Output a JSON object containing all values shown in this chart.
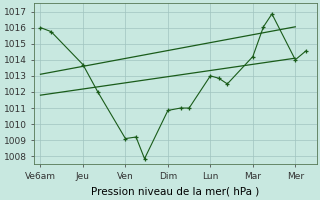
{
  "xlabel": "Pression niveau de la mer( hPa )",
  "xtick_labels": [
    "Ve6am",
    "Jeu",
    "Ven",
    "Dim",
    "Lun",
    "Mar",
    "Mer"
  ],
  "xtick_positions": [
    0,
    1,
    2,
    3,
    4,
    5,
    6
  ],
  "ylim": [
    1007.5,
    1017.5
  ],
  "bg_color": "#c8e8e0",
  "grid_color": "#a0c4c0",
  "line_color": "#1a5c1a",
  "line1_x": [
    0,
    0.25,
    1.0,
    1.35,
    2.0,
    2.25,
    2.45,
    3.0,
    3.3,
    3.5,
    4.0,
    4.2,
    4.4,
    5.0,
    5.25,
    5.45,
    6.0,
    6.25
  ],
  "line1_y": [
    1016.0,
    1015.75,
    1013.7,
    1012.0,
    1009.1,
    1009.2,
    1007.85,
    1010.85,
    1011.0,
    1011.0,
    1013.0,
    1012.85,
    1012.5,
    1014.2,
    1016.05,
    1016.85,
    1014.0,
    1014.55
  ],
  "line2_x": [
    0,
    6
  ],
  "line2_y": [
    1013.1,
    1016.05
  ],
  "line3_x": [
    0,
    6
  ],
  "line3_y": [
    1011.8,
    1014.1
  ],
  "font_size_xlabel": 7.5,
  "font_size_tick": 6.5
}
